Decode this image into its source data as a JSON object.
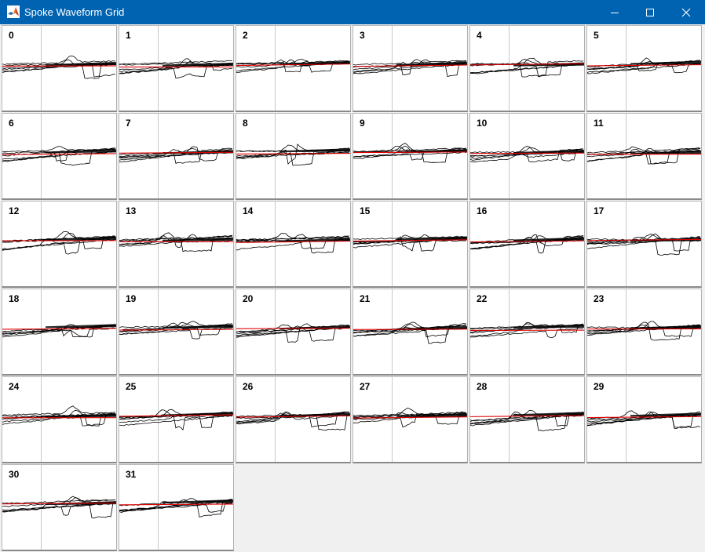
{
  "window": {
    "title": "Spoke Waveform Grid",
    "app_icon": "matlab-icon",
    "controls": [
      "minimize-icon",
      "maximize-icon",
      "close-icon"
    ]
  },
  "grid": {
    "columns": 6,
    "panels": [
      {
        "label": "0"
      },
      {
        "label": "1"
      },
      {
        "label": "2"
      },
      {
        "label": "3"
      },
      {
        "label": "4"
      },
      {
        "label": "5"
      },
      {
        "label": "6"
      },
      {
        "label": "7"
      },
      {
        "label": "8"
      },
      {
        "label": "9"
      },
      {
        "label": "10"
      },
      {
        "label": "11"
      },
      {
        "label": "12"
      },
      {
        "label": "13"
      },
      {
        "label": "14"
      },
      {
        "label": "15"
      },
      {
        "label": "16"
      },
      {
        "label": "17"
      },
      {
        "label": "18"
      },
      {
        "label": "19"
      },
      {
        "label": "20"
      },
      {
        "label": "21"
      },
      {
        "label": "22"
      },
      {
        "label": "23"
      },
      {
        "label": "24"
      },
      {
        "label": "25"
      },
      {
        "label": "26"
      },
      {
        "label": "27"
      },
      {
        "label": "28"
      },
      {
        "label": "29"
      },
      {
        "label": "30"
      },
      {
        "label": "31"
      }
    ]
  },
  "colors": {
    "titlebar": "#0063b1",
    "trace": "#000000",
    "mean_line": "#e00000",
    "divider": "#c8c8c8",
    "background": "#f0f0f0"
  }
}
